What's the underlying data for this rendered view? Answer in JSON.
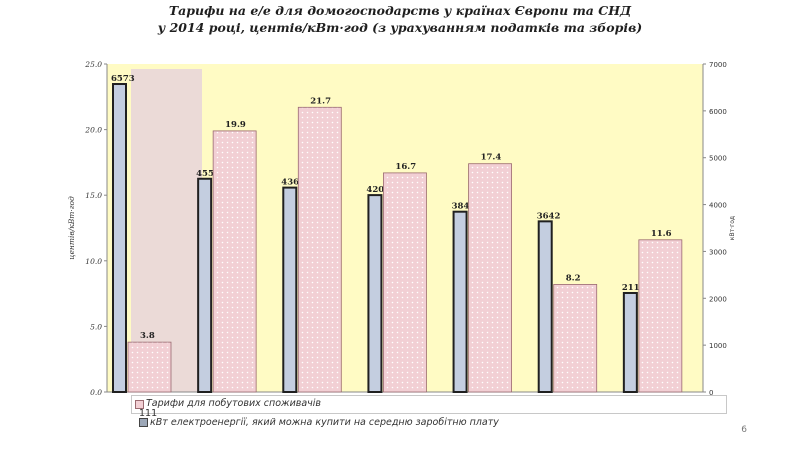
{
  "title": {
    "line1": "Тарифи на е/е для домогосподарств у країнах Європи та СНД",
    "line2": "у 2014 році, центів/кВт·год (з урахуванням податків та зборів)"
  },
  "page_number": "6",
  "legend": {
    "tariff_label": "Тарифи для побутових споживачів",
    "overlap_value": "111",
    "electricity_label": "електроенергії, який можна купити на середню заробітню плату",
    "electricity_prefix": "кВт"
  },
  "colors": {
    "plot_bg": "#fffbc4",
    "tariff_fill": "#f2cfd4",
    "tariff_border": "#9a6a70",
    "kwh_fill": "#c4cee0",
    "kwh_border": "#202020",
    "highlight": "#ead8d8"
  },
  "chart_data": {
    "type": "bar",
    "series": [
      {
        "values": [
          6573,
          4551,
          4362,
          4202,
          3848,
          3642,
          2113
        ],
        "axis": "right"
      },
      {
        "name": "Тарифи для побутових споживачів",
        "values": [
          3.8,
          19.9,
          21.7,
          16.7,
          17.4,
          8.2,
          11.6
        ],
        "axis": "left"
      }
    ],
    "y_left": {
      "label": "центів/кВт·год",
      "ticks": [
        "0.0",
        "5.0",
        "10.0",
        "15.0",
        "20.0",
        "25.0"
      ],
      "ylim": [
        0,
        25
      ]
    },
    "y_right": {
      "label": "кВт·год",
      "ticks": [
        "0",
        "1000",
        "2000",
        "3000",
        "4000",
        "5000",
        "6000",
        "7000"
      ],
      "ylim": [
        0,
        7000
      ]
    },
    "grid": false
  }
}
